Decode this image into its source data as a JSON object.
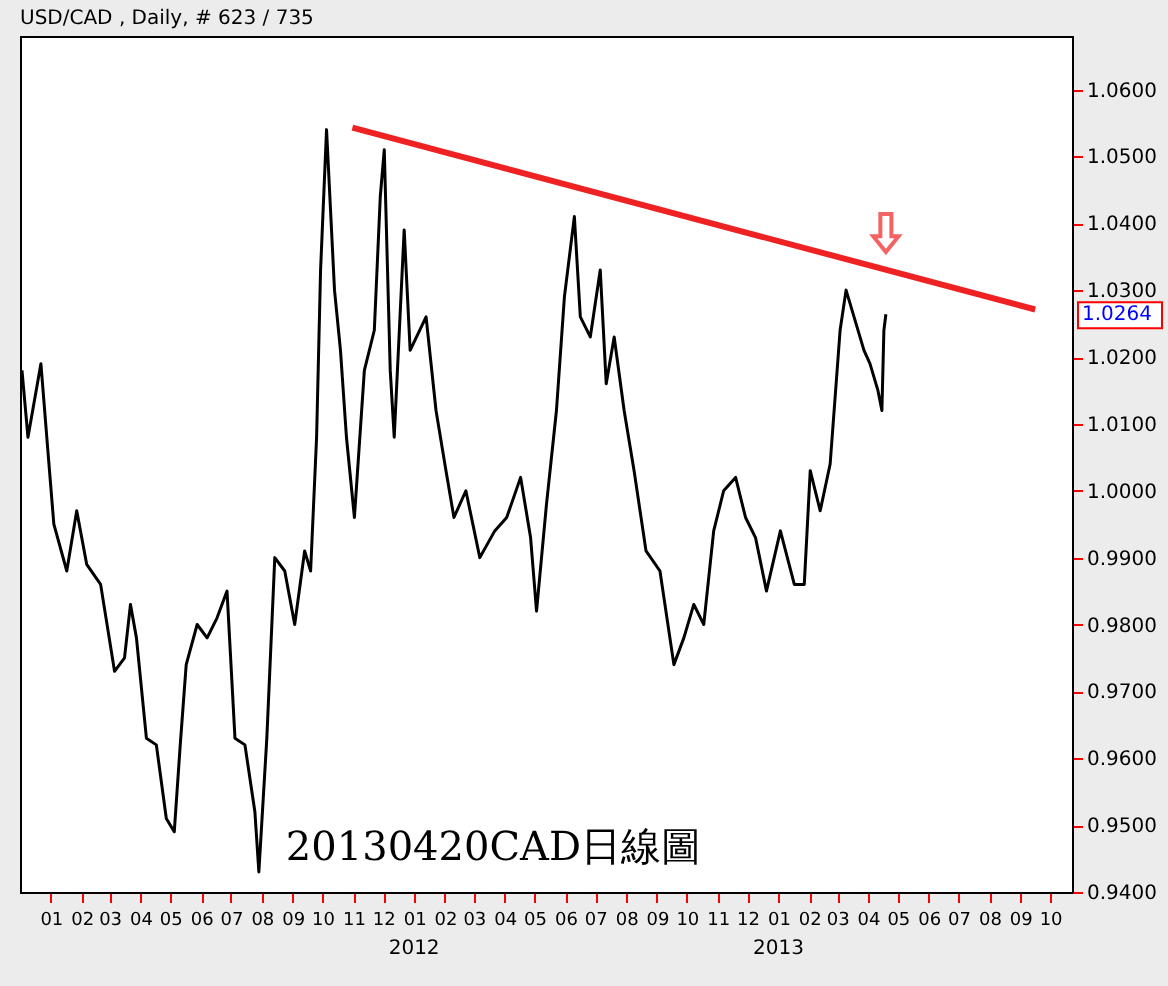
{
  "chart_data": {
    "type": "line",
    "title": "USD/CAD , Daily, # 623 / 735",
    "annotations": [
      "20130420CAD日線圖",
      "2012",
      "2013",
      "1.0264"
    ],
    "series": [
      {
        "color": "#000000",
        "x": [
          "2010-12-03",
          "2010-12-09",
          "2010-12-22",
          "2010-12-29",
          "2011-01-04",
          "2011-01-17",
          "2011-01-27",
          "2011-02-06",
          "2011-02-20",
          "2011-03-06",
          "2011-03-16",
          "2011-03-22",
          "2011-03-28",
          "2011-04-07",
          "2011-04-17",
          "2011-04-27",
          "2011-05-05",
          "2011-05-11",
          "2011-05-17",
          "2011-05-28",
          "2011-06-07",
          "2011-06-17",
          "2011-06-27",
          "2011-07-05",
          "2011-07-15",
          "2011-07-25",
          "2011-07-29",
          "2011-08-06",
          "2011-08-14",
          "2011-08-24",
          "2011-09-03",
          "2011-09-13",
          "2011-09-19",
          "2011-09-25",
          "2011-09-29",
          "2011-10-05",
          "2011-10-13",
          "2011-10-19",
          "2011-10-25",
          "2011-11-02",
          "2011-11-12",
          "2011-11-22",
          "2011-11-28",
          "2011-12-02",
          "2011-12-08",
          "2011-12-12",
          "2011-12-22",
          "2011-12-28",
          "2012-01-13",
          "2012-01-23",
          "2012-02-02",
          "2012-02-10",
          "2012-02-22",
          "2012-03-07",
          "2012-03-22",
          "2012-04-03",
          "2012-04-17",
          "2012-04-27",
          "2012-05-03",
          "2012-05-13",
          "2012-05-23",
          "2012-05-31",
          "2012-06-10",
          "2012-06-16",
          "2012-06-26",
          "2012-07-06",
          "2012-07-12",
          "2012-07-20",
          "2012-07-30",
          "2012-08-09",
          "2012-08-21",
          "2012-09-04",
          "2012-09-18",
          "2012-09-28",
          "2012-10-08",
          "2012-10-18",
          "2012-10-28",
          "2012-11-07",
          "2012-11-19",
          "2012-11-29",
          "2012-12-09",
          "2012-12-20",
          "2013-01-03",
          "2013-01-17",
          "2013-01-27",
          "2013-02-02",
          "2013-02-12",
          "2013-02-22",
          "2013-02-28",
          "2013-03-04",
          "2013-03-10",
          "2013-03-18",
          "2013-03-28",
          "2013-04-03",
          "2013-04-11",
          "2013-04-15",
          "2013-04-17",
          "2013-04-19"
        ],
        "values": [
          1.018,
          1.008,
          1.019,
          1.006,
          0.995,
          0.988,
          0.997,
          0.989,
          0.986,
          0.973,
          0.975,
          0.983,
          0.978,
          0.963,
          0.962,
          0.951,
          0.949,
          0.962,
          0.974,
          0.98,
          0.978,
          0.981,
          0.985,
          0.963,
          0.962,
          0.952,
          0.943,
          0.963,
          0.99,
          0.988,
          0.98,
          0.991,
          0.988,
          1.008,
          1.033,
          1.054,
          1.03,
          1.021,
          1.008,
          0.996,
          1.018,
          1.024,
          1.044,
          1.051,
          1.018,
          1.008,
          1.039,
          1.021,
          1.026,
          1.012,
          1.003,
          0.996,
          1.0,
          0.99,
          0.994,
          0.996,
          1.002,
          0.993,
          0.982,
          0.998,
          1.012,
          1.029,
          1.041,
          1.026,
          1.023,
          1.033,
          1.016,
          1.023,
          1.012,
          1.003,
          0.991,
          0.988,
          0.974,
          0.978,
          0.983,
          0.98,
          0.994,
          1.0,
          1.002,
          0.996,
          0.993,
          0.985,
          0.994,
          0.986,
          0.986,
          1.003,
          0.997,
          1.004,
          1.016,
          1.024,
          1.03,
          1.026,
          1.021,
          1.019,
          1.015,
          1.012,
          1.024,
          1.0264
        ]
      },
      {
        "color": "#ee2222",
        "x": [
          "2011-10-31",
          "2013-09-16"
        ],
        "values": [
          1.0543,
          1.0271
        ]
      }
    ],
    "xlim": [
      "2010-12-01",
      "2013-10-23"
    ],
    "xticks": [
      {
        "value": "2011-01-01",
        "label": "01"
      },
      {
        "value": "2011-02-01",
        "label": "02"
      },
      {
        "value": "2011-03-01",
        "label": "03"
      },
      {
        "value": "2011-04-01",
        "label": "04"
      },
      {
        "value": "2011-05-01",
        "label": "05"
      },
      {
        "value": "2011-06-01",
        "label": "06"
      },
      {
        "value": "2011-07-01",
        "label": "07"
      },
      {
        "value": "2011-08-01",
        "label": "08"
      },
      {
        "value": "2011-09-01",
        "label": "09"
      },
      {
        "value": "2011-10-01",
        "label": "10"
      },
      {
        "value": "2011-11-01",
        "label": "11"
      },
      {
        "value": "2011-12-01",
        "label": "12"
      },
      {
        "value": "2012-01-01",
        "label": "01"
      },
      {
        "value": "2012-02-01",
        "label": "02"
      },
      {
        "value": "2012-03-01",
        "label": "03"
      },
      {
        "value": "2012-04-01",
        "label": "04"
      },
      {
        "value": "2012-05-01",
        "label": "05"
      },
      {
        "value": "2012-06-01",
        "label": "06"
      },
      {
        "value": "2012-07-01",
        "label": "07"
      },
      {
        "value": "2012-08-01",
        "label": "08"
      },
      {
        "value": "2012-09-01",
        "label": "09"
      },
      {
        "value": "2012-10-01",
        "label": "10"
      },
      {
        "value": "2012-11-01",
        "label": "11"
      },
      {
        "value": "2012-12-01",
        "label": "12"
      },
      {
        "value": "2013-01-01",
        "label": "01"
      },
      {
        "value": "2013-02-01",
        "label": "02"
      },
      {
        "value": "2013-03-01",
        "label": "03"
      },
      {
        "value": "2013-04-01",
        "label": "04"
      },
      {
        "value": "2013-05-01",
        "label": "05"
      },
      {
        "value": "2013-06-01",
        "label": "06"
      },
      {
        "value": "2013-07-01",
        "label": "07"
      },
      {
        "value": "2013-08-01",
        "label": "08"
      },
      {
        "value": "2013-09-01",
        "label": "09"
      },
      {
        "value": "2013-10-01",
        "label": "10"
      }
    ],
    "ylim": [
      0.94,
      1.068
    ],
    "yticks": [
      {
        "value": 0.94,
        "label": "0.9400"
      },
      {
        "value": 0.95,
        "label": "0.9500"
      },
      {
        "value": 0.96,
        "label": "0.9600"
      },
      {
        "value": 0.97,
        "label": "0.9700"
      },
      {
        "value": 0.98,
        "label": "0.9800"
      },
      {
        "value": 0.99,
        "label": "0.9900"
      },
      {
        "value": 1.0,
        "label": "1.0000"
      },
      {
        "value": 1.01,
        "label": "1.0100"
      },
      {
        "value": 1.02,
        "label": "1.0200"
      },
      {
        "value": 1.03,
        "label": "1.0300"
      },
      {
        "value": 1.04,
        "label": "1.0400"
      },
      {
        "value": 1.05,
        "label": "1.0500"
      },
      {
        "value": 1.06,
        "label": "1.0600"
      }
    ],
    "grid": false,
    "legend": false,
    "marker": "none",
    "line_style": "solid"
  }
}
